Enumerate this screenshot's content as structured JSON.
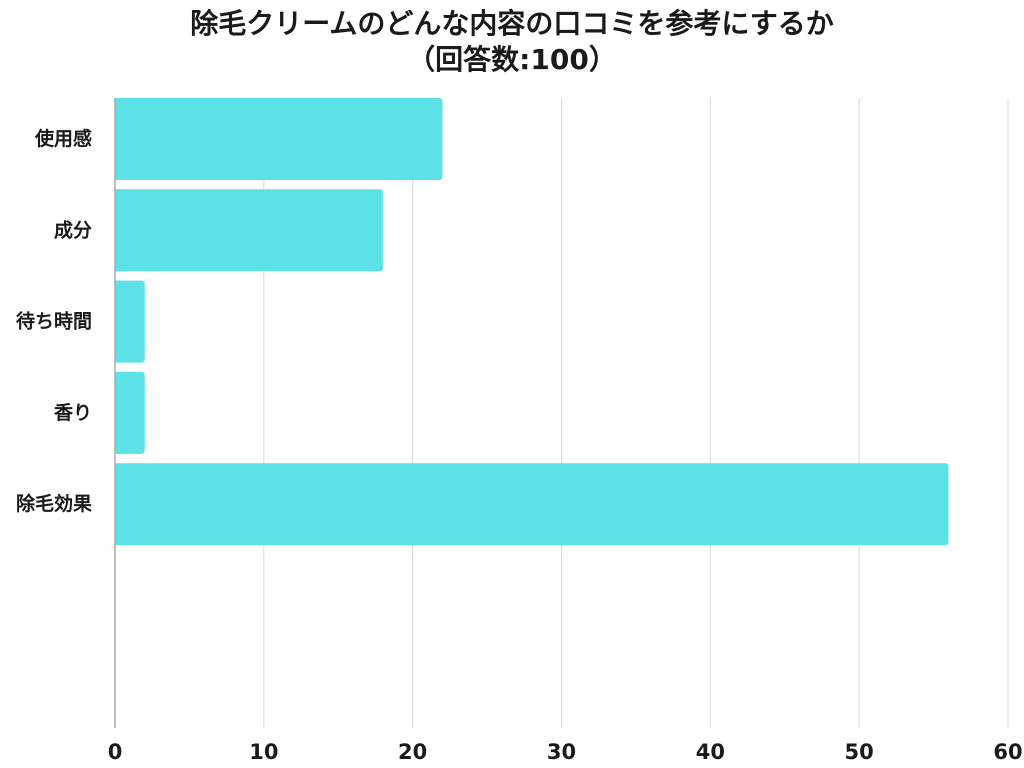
{
  "title": "除毛クリームのどんな内容の口コミを参考にするか",
  "subtitle": "（回答数:100）",
  "bar_color": "#5ce1e6",
  "grid_color": "#d9d9d9",
  "axis_color": "#aaaaaa",
  "chart_data": {
    "type": "bar",
    "orientation": "horizontal",
    "categories": [
      "使用感",
      "成分",
      "待ち時間",
      "香り",
      "除毛効果"
    ],
    "values": [
      22,
      18,
      2,
      2,
      56
    ],
    "xlim": [
      0,
      60
    ],
    "xticks": [
      0,
      10,
      20,
      30,
      40,
      50,
      60
    ],
    "grid": true,
    "legend": "none"
  }
}
